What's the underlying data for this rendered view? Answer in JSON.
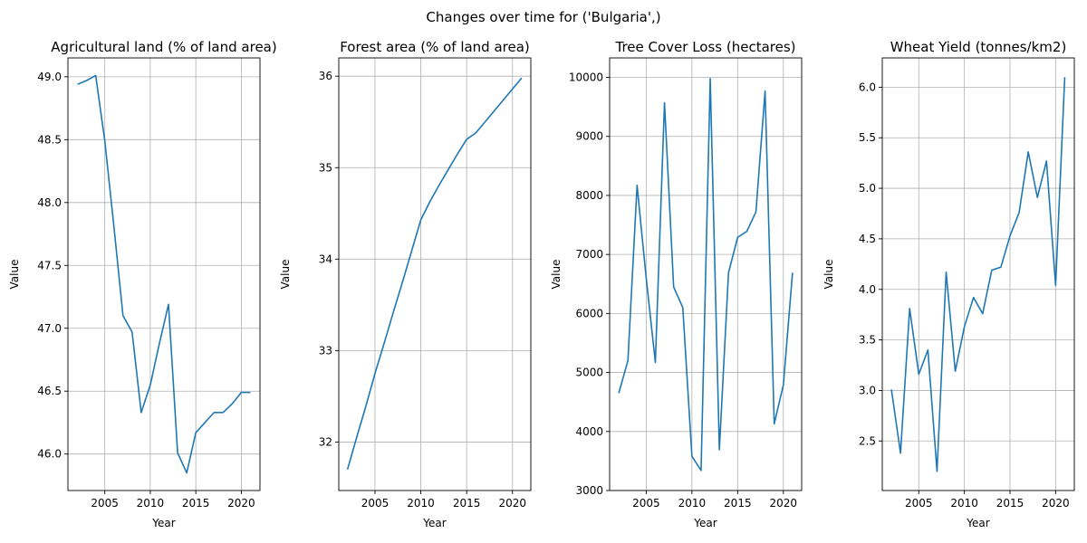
{
  "figure": {
    "suptitle": "Changes over time for ('Bulgaria',)"
  },
  "colors": {
    "line": "#1f77b4",
    "grid": "#b0b0b0",
    "axes": "#000000"
  },
  "chart_data": [
    {
      "type": "line",
      "title": "Agricultural land (% of land area)",
      "xlabel": "Year",
      "ylabel": "Value",
      "xlim": [
        2000.95,
        2022.05
      ],
      "ylim": [
        45.71,
        49.15
      ],
      "xticks": [
        2005,
        2010,
        2015,
        2020
      ],
      "yticks": [
        46.0,
        46.5,
        47.0,
        47.5,
        48.0,
        48.5,
        49.0
      ],
      "ytick_labels": [
        "46.0",
        "46.5",
        "47.0",
        "47.5",
        "48.0",
        "48.5",
        "49.0"
      ],
      "grid": true,
      "x": [
        2002,
        2003,
        2004,
        2005,
        2006,
        2007,
        2008,
        2009,
        2010,
        2011,
        2012,
        2013,
        2014,
        2015,
        2016,
        2017,
        2018,
        2019,
        2020,
        2021
      ],
      "y": [
        48.94,
        48.97,
        49.01,
        48.49,
        47.81,
        47.1,
        46.97,
        46.33,
        46.55,
        46.88,
        47.19,
        46.01,
        45.85,
        46.17,
        46.25,
        46.33,
        46.33,
        46.4,
        46.49,
        46.49
      ]
    },
    {
      "type": "line",
      "title": "Forest area (% of land area)",
      "xlabel": "Year",
      "ylabel": "Value",
      "xlim": [
        2001.05,
        2022.0
      ],
      "ylim": [
        31.47,
        36.2
      ],
      "xticks": [
        2005,
        2010,
        2015,
        2020
      ],
      "yticks": [
        32,
        33,
        34,
        35,
        36
      ],
      "ytick_labels": [
        "32",
        "33",
        "34",
        "35",
        "36"
      ],
      "grid": true,
      "x": [
        2002,
        2003,
        2004,
        2005,
        2006,
        2007,
        2008,
        2009,
        2010,
        2011,
        2012,
        2013,
        2014,
        2015,
        2016,
        2017,
        2018,
        2019,
        2020,
        2021
      ],
      "y": [
        31.7,
        32.05,
        32.39,
        32.75,
        33.08,
        33.42,
        33.75,
        34.09,
        34.43,
        34.63,
        34.81,
        34.98,
        35.15,
        35.31,
        35.38,
        35.5,
        35.62,
        35.74,
        35.86,
        35.98
      ]
    },
    {
      "type": "line",
      "title": "Tree Cover Loss (hectares)",
      "xlabel": "Year",
      "ylabel": "Value",
      "xlim": [
        2001.0,
        2022.0
      ],
      "ylim": [
        3000,
        10330
      ],
      "xticks": [
        2005,
        2010,
        2015,
        2020
      ],
      "yticks": [
        3000,
        4000,
        5000,
        6000,
        7000,
        8000,
        9000,
        10000
      ],
      "ytick_labels": [
        "3000",
        "4000",
        "5000",
        "6000",
        "7000",
        "8000",
        "9000",
        "10000"
      ],
      "grid": true,
      "x": [
        2002,
        2003,
        2004,
        2005,
        2006,
        2007,
        2008,
        2009,
        2010,
        2011,
        2012,
        2013,
        2014,
        2015,
        2016,
        2017,
        2018,
        2019,
        2020,
        2021
      ],
      "y": [
        4650,
        5200,
        8170,
        6600,
        5170,
        9570,
        6450,
        6100,
        3580,
        3340,
        9980,
        3690,
        6690,
        7290,
        7390,
        7720,
        9770,
        4130,
        4790,
        6690
      ]
    },
    {
      "type": "line",
      "title": "Wheat Yield (tonnes/km2)",
      "xlabel": "Year",
      "ylabel": "Value",
      "xlim": [
        2001.0,
        2022.05
      ],
      "ylim": [
        2.01,
        6.29
      ],
      "xticks": [
        2005,
        2010,
        2015,
        2020
      ],
      "yticks": [
        2.5,
        3.0,
        3.5,
        4.0,
        4.5,
        5.0,
        5.5,
        6.0
      ],
      "ytick_labels": [
        "2.5",
        "3.0",
        "3.5",
        "4.0",
        "4.5",
        "5.0",
        "5.5",
        "6.0"
      ],
      "grid": true,
      "x": [
        2002,
        2003,
        2004,
        2005,
        2006,
        2007,
        2008,
        2009,
        2010,
        2011,
        2012,
        2013,
        2014,
        2015,
        2016,
        2017,
        2018,
        2019,
        2020,
        2021
      ],
      "y": [
        3.01,
        2.38,
        3.81,
        3.16,
        3.4,
        2.2,
        4.17,
        3.19,
        3.63,
        3.92,
        3.76,
        4.19,
        4.22,
        4.53,
        4.76,
        5.36,
        4.91,
        5.27,
        4.04,
        6.1
      ]
    }
  ]
}
